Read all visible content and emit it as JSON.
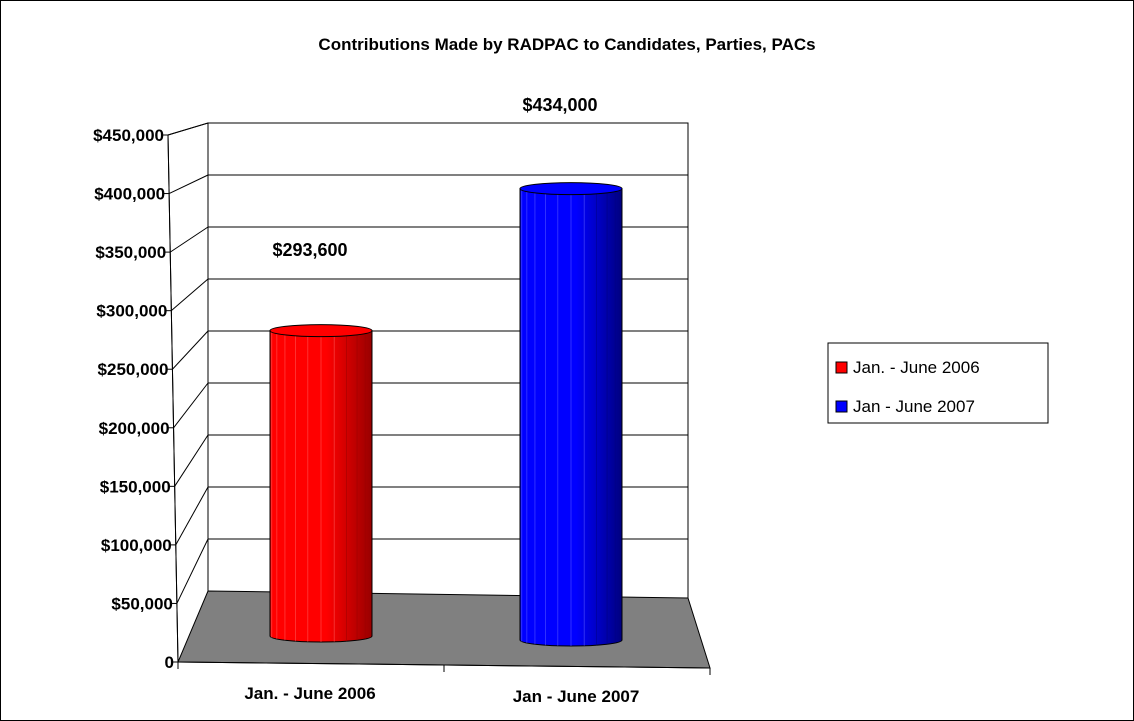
{
  "chart_data": {
    "type": "bar",
    "title": "Contributions Made by RADPAC to Candidates, Parties, PACs",
    "categories": [
      "Jan. - June 2006",
      "Jan - June 2007"
    ],
    "values": [
      293600,
      434000
    ],
    "data_labels": [
      "$293,600",
      "$434,000"
    ],
    "colors": [
      "#ff0000",
      "#0000ff"
    ],
    "ylim": [
      0,
      450000
    ],
    "y_tick_labels": [
      "0",
      "$50,000",
      "$100,000",
      "$150,000",
      "$200,000",
      "$250,000",
      "$300,000",
      "$350,000",
      "$400,000",
      "$450,000"
    ],
    "grid": true,
    "style": "3d-cylinder",
    "legend": {
      "position": "right",
      "entries": [
        {
          "label": "Jan. - June 2006",
          "color": "#ff0000"
        },
        {
          "label": "Jan - June 2007",
          "color": "#0000ff"
        }
      ]
    }
  }
}
